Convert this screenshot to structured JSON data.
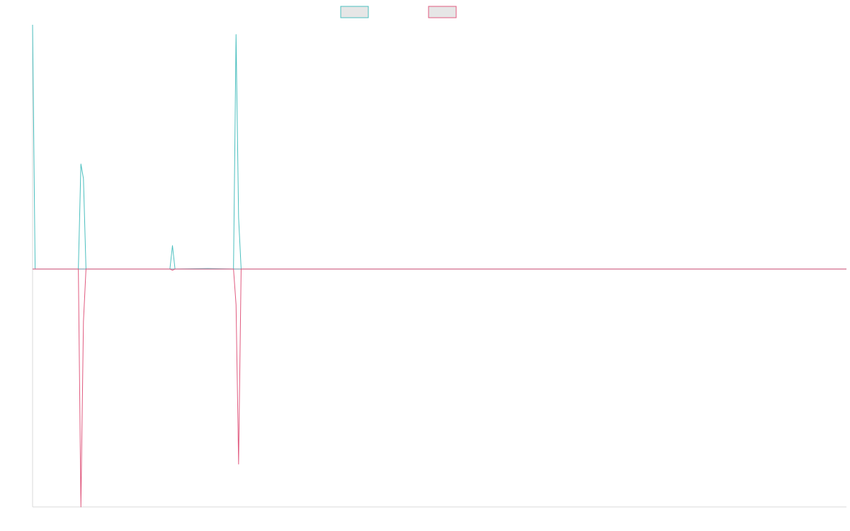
{
  "chart_data": {
    "type": "line",
    "title": "",
    "xlabel": "",
    "ylabel": "",
    "ylim": [
      -1,
      1
    ],
    "grid": false,
    "legend": "top-center",
    "x": [
      0,
      1,
      18,
      19,
      20,
      21,
      54,
      55,
      56,
      69,
      79,
      80,
      81,
      82,
      320
    ],
    "series": [
      {
        "color": "#4bbfbf",
        "values": [
          1.0,
          0.0,
          0.0,
          0.43,
          0.37,
          0.0,
          0.0,
          0.096,
          0.0,
          0.002,
          0.0,
          0.96,
          0.21,
          0.0,
          0.0
        ]
      },
      {
        "color": "#e05a7f",
        "values": [
          0.0,
          0.0,
          0.0,
          -1.0,
          -0.22,
          0.0,
          0.0,
          -0.005,
          0.0,
          0.0,
          0.0,
          -0.15,
          -0.82,
          0.0,
          0.0
        ]
      }
    ],
    "colors": {
      "zero_line": "#8ea2b4",
      "axis": "#d9d9d9",
      "legend_fill": "#e6e6e6"
    }
  }
}
